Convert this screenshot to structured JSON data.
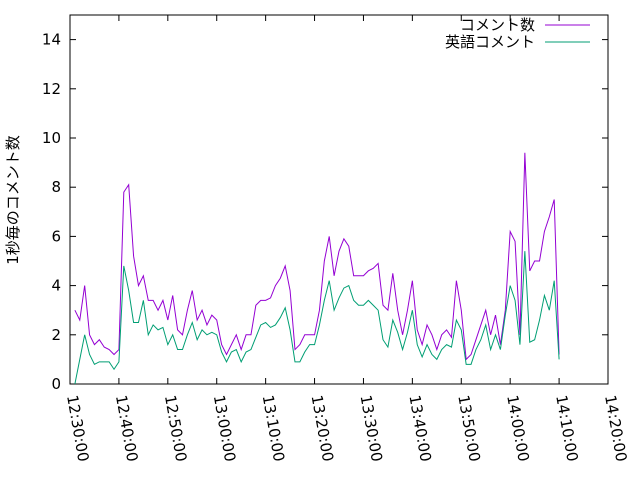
{
  "chart_data": {
    "type": "line",
    "y_label": "1秒毎のコメント数",
    "legend": "top-right",
    "x": [
      "12:31:00",
      "12:32:00",
      "12:33:00",
      "12:34:00",
      "12:35:00",
      "12:36:00",
      "12:37:00",
      "12:38:00",
      "12:39:00",
      "12:40:00",
      "12:41:00",
      "12:42:00",
      "12:43:00",
      "12:44:00",
      "12:45:00",
      "12:46:00",
      "12:47:00",
      "12:48:00",
      "12:49:00",
      "12:50:00",
      "12:51:00",
      "12:52:00",
      "12:53:00",
      "12:54:00",
      "12:55:00",
      "12:56:00",
      "12:57:00",
      "12:58:00",
      "12:59:00",
      "13:00:00",
      "13:01:00",
      "13:02:00",
      "13:03:00",
      "13:04:00",
      "13:05:00",
      "13:06:00",
      "13:07:00",
      "13:08:00",
      "13:09:00",
      "13:10:00",
      "13:11:00",
      "13:12:00",
      "13:13:00",
      "13:14:00",
      "13:15:00",
      "13:16:00",
      "13:17:00",
      "13:18:00",
      "13:19:00",
      "13:20:00",
      "13:21:00",
      "13:22:00",
      "13:23:00",
      "13:24:00",
      "13:25:00",
      "13:26:00",
      "13:27:00",
      "13:28:00",
      "13:29:00",
      "13:30:00",
      "13:31:00",
      "13:32:00",
      "13:33:00",
      "13:34:00",
      "13:35:00",
      "13:36:00",
      "13:37:00",
      "13:38:00",
      "13:39:00",
      "13:40:00",
      "13:41:00",
      "13:42:00",
      "13:43:00",
      "13:44:00",
      "13:45:00",
      "13:46:00",
      "13:47:00",
      "13:48:00",
      "13:49:00",
      "13:50:00",
      "13:51:00",
      "13:52:00",
      "13:53:00",
      "13:54:00",
      "13:55:00",
      "13:56:00",
      "13:57:00",
      "13:58:00",
      "13:59:00",
      "14:00:00",
      "14:01:00",
      "14:02:00",
      "14:03:00",
      "14:04:00",
      "14:05:00",
      "14:06:00",
      "14:07:00",
      "14:08:00",
      "14:09:00",
      "14:10:00"
    ],
    "series": [
      {
        "name": "コメント数",
        "color": "#9400d3",
        "values": [
          3.0,
          2.6,
          4.0,
          2.0,
          1.6,
          1.8,
          1.5,
          1.4,
          1.2,
          1.4,
          7.8,
          8.1,
          5.2,
          4.0,
          4.4,
          3.4,
          3.4,
          3.0,
          3.4,
          2.6,
          3.6,
          2.2,
          2.0,
          3.0,
          3.8,
          2.6,
          3.0,
          2.4,
          2.8,
          2.6,
          1.6,
          1.2,
          1.6,
          2.0,
          1.4,
          2.0,
          2.0,
          3.2,
          3.4,
          3.4,
          3.5,
          4.0,
          4.3,
          4.8,
          3.8,
          1.4,
          1.6,
          2.0,
          2.0,
          2.0,
          3.0,
          5.0,
          6.0,
          4.4,
          5.4,
          5.9,
          5.6,
          4.4,
          4.4,
          4.4,
          4.6,
          4.7,
          4.9,
          3.2,
          3.0,
          4.5,
          3.0,
          2.0,
          3.0,
          4.2,
          2.2,
          1.6,
          2.4,
          2.0,
          1.4,
          2.0,
          2.2,
          1.9,
          4.2,
          3.0,
          1.0,
          1.2,
          1.8,
          2.4,
          3.0,
          2.0,
          2.8,
          1.6,
          3.0,
          6.2,
          5.8,
          2.0,
          9.4,
          4.6,
          5.0,
          5.0,
          6.2,
          6.8,
          7.5,
          1.2
        ]
      },
      {
        "name": "英語コメント",
        "color": "#009e73",
        "values": [
          0.0,
          1.0,
          2.0,
          1.2,
          0.8,
          0.9,
          0.9,
          0.9,
          0.6,
          0.9,
          4.8,
          3.8,
          2.5,
          2.5,
          3.4,
          2.0,
          2.4,
          2.2,
          2.3,
          1.6,
          2.0,
          1.4,
          1.4,
          2.0,
          2.5,
          1.8,
          2.2,
          2.0,
          2.1,
          2.0,
          1.3,
          0.9,
          1.3,
          1.4,
          0.9,
          1.3,
          1.4,
          1.9,
          2.4,
          2.5,
          2.3,
          2.4,
          2.7,
          3.1,
          2.2,
          0.9,
          0.9,
          1.3,
          1.6,
          1.6,
          2.4,
          3.4,
          4.2,
          3.0,
          3.5,
          3.9,
          4.0,
          3.4,
          3.2,
          3.2,
          3.4,
          3.2,
          3.0,
          1.8,
          1.5,
          2.6,
          2.1,
          1.4,
          2.1,
          3.0,
          1.6,
          1.1,
          1.6,
          1.2,
          1.0,
          1.4,
          1.6,
          1.5,
          2.6,
          2.2,
          0.8,
          0.8,
          1.4,
          1.8,
          2.4,
          1.4,
          2.0,
          1.4,
          2.8,
          4.0,
          3.4,
          1.6,
          5.4,
          1.7,
          1.8,
          2.6,
          3.6,
          3.0,
          4.2,
          1.0
        ]
      }
    ],
    "xlim": [
      "12:30:00",
      "14:20:00"
    ],
    "xticks": [
      "12:30:00",
      "12:40:00",
      "12:50:00",
      "13:00:00",
      "13:10:00",
      "13:20:00",
      "13:30:00",
      "13:40:00",
      "13:50:00",
      "14:00:00",
      "14:10:00",
      "14:20:00"
    ],
    "ylim": [
      0,
      15
    ],
    "yticks": [
      0,
      2,
      4,
      6,
      8,
      10,
      12,
      14
    ]
  }
}
